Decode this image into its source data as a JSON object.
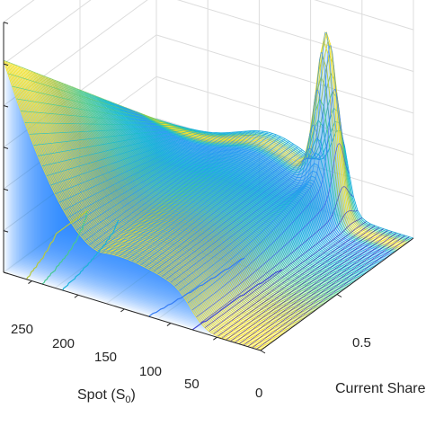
{
  "chart_data": {
    "type": "surface3d",
    "xlabel": {
      "main": "Spot (S",
      "sub": "0",
      "close": ")"
    },
    "ylabel": "Current Share",
    "x_ticks": [
      "250",
      "200",
      "150",
      "100",
      "50"
    ],
    "y_ticks": [
      "0",
      "0.5"
    ],
    "x_range": [
      0,
      280
    ],
    "y_range": [
      0,
      1
    ],
    "colormap": [
      "#3e26a8",
      "#4258f1",
      "#2a98f8",
      "#16bbcf",
      "#4ecb8a",
      "#b1c63c",
      "#f5e224"
    ],
    "grid": true,
    "contour_projection": true
  }
}
